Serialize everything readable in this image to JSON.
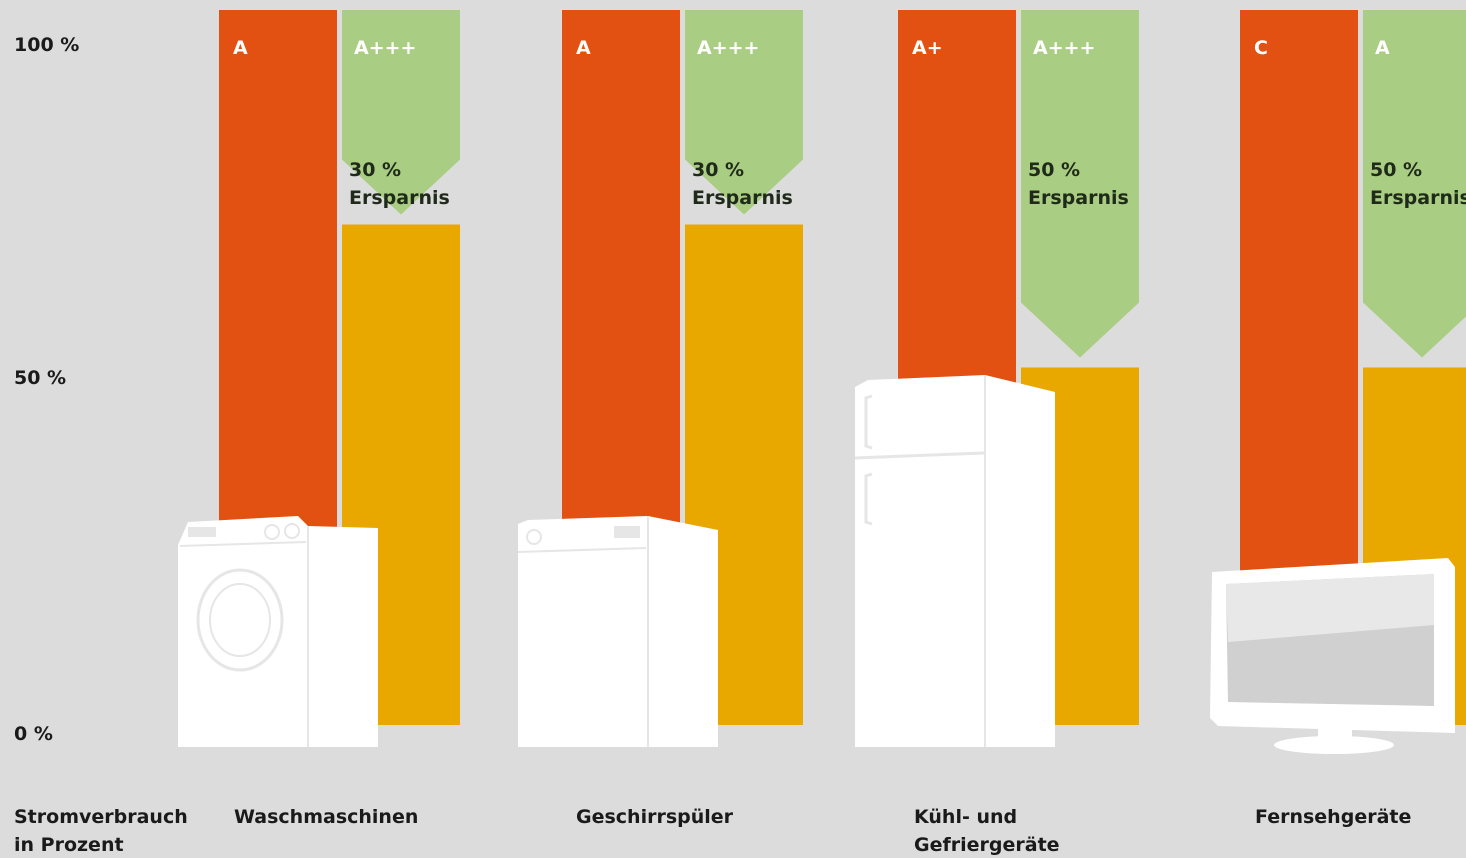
{
  "chart_data": {
    "type": "bar",
    "ylabel": "Stromverbrauch\nin Prozent",
    "yticks": [
      "100 %",
      "50 %",
      "0 %"
    ],
    "ylim": [
      0,
      100
    ],
    "colors": {
      "old_class": "#e35112",
      "new_class": "#e8a800",
      "savings": "#a9cd82",
      "appliance": "#ffffff"
    },
    "categories": [
      {
        "name": "Waschmaschinen",
        "old_class": "A",
        "new_class": "A+++",
        "old_value": 100,
        "new_value": 70,
        "savings_text": "30 %\nErsparnis",
        "icon": "washing-machine-icon"
      },
      {
        "name": "Geschirrspüler",
        "old_class": "A",
        "new_class": "A+++",
        "old_value": 100,
        "new_value": 70,
        "savings_text": "30 %\nErsparnis",
        "icon": "dishwasher-icon"
      },
      {
        "name": "Kühl- und\nGefriergeräte",
        "old_class": "A+",
        "new_class": "A+++",
        "old_value": 100,
        "new_value": 50,
        "savings_text": "50 %\nErsparnis",
        "icon": "fridge-icon"
      },
      {
        "name": "Fernsehgeräte",
        "old_class": "C",
        "new_class": "A",
        "old_value": 100,
        "new_value": 50,
        "savings_text": "50 %\nErsparnis",
        "icon": "tv-icon"
      }
    ]
  }
}
